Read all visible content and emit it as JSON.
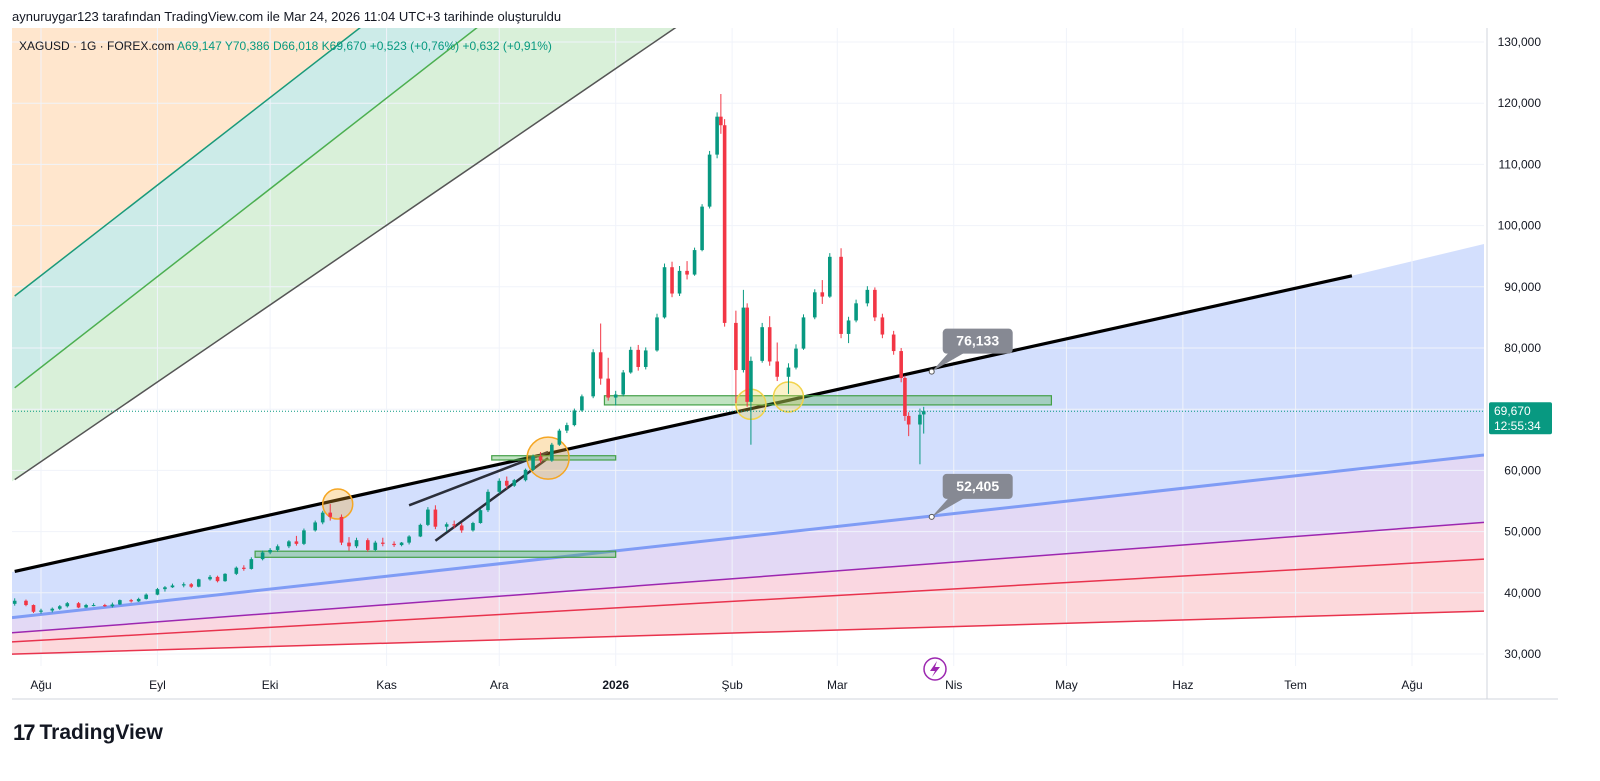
{
  "header": {
    "note": "aynuruygar123 tarafından TradingView.com ile Mar 24, 2026 11:04 UTC+3 tarihinde oluşturuldu"
  },
  "legend": {
    "symbol": "XAGUSD · 1G · FOREX.com",
    "open": "A69,147",
    "high": "Y70,386",
    "low": "D66,018",
    "close": "K69,670",
    "change": "+0,523 (+0,76%)",
    "change2": "+0,632 (+0,91%)"
  },
  "brand": {
    "logo_mark": "17",
    "name": "TradingView"
  },
  "colors": {
    "up": "#089981",
    "down": "#f23645",
    "blue_line": "#7f9cf5",
    "price_label": "#089981",
    "callout": "#868993"
  },
  "chart_data": {
    "type": "candlestick",
    "y_ticks": [
      "130,000",
      "120,000",
      "110,000",
      "100,000",
      "90,000",
      "80,000",
      "70,000",
      "60,000",
      "50,000",
      "40,000",
      "30,000"
    ],
    "y_tick_values": [
      130,
      120,
      110,
      100,
      90,
      80,
      70,
      60,
      50,
      40,
      30
    ],
    "ylim": [
      28,
      133
    ],
    "x_ticks": [
      "Ağu",
      "Eyl",
      "Eki",
      "Kas",
      "Ara",
      "2026",
      "Şub",
      "Mar",
      "Nis",
      "May",
      "Haz",
      "Tem",
      "Ağu"
    ],
    "x_tick_dates": [
      "2025-08-01",
      "2025-09-01",
      "2025-10-01",
      "2025-11-01",
      "2025-12-01",
      "2026-01-01",
      "2026-02-01",
      "2026-03-01",
      "2026-04-01",
      "2026-05-01",
      "2026-06-01",
      "2026-07-01",
      "2026-08-01"
    ],
    "last_price": "69,670",
    "countdown": "12:55:34",
    "callouts": [
      {
        "label": "76,133",
        "date": "2026-03-24",
        "value": 76.133
      },
      {
        "label": "52,405",
        "date": "2026-03-24",
        "value": 52.405
      }
    ],
    "trendlines": [
      {
        "name": "black-trendline",
        "from": [
          "2025-07-25",
          43.5
        ],
        "to": [
          "2026-07-16",
          91.8
        ]
      },
      {
        "name": "blue-trendline",
        "from": [
          "2025-07-25",
          36.0
        ],
        "to": [
          "2026-08-20",
          62.5
        ]
      },
      {
        "name": "purple-line",
        "from": [
          "2025-07-25",
          33.5
        ],
        "to": [
          "2026-08-20",
          51.5
        ]
      },
      {
        "name": "red-line",
        "from": [
          "2025-07-25",
          32.0
        ],
        "to": [
          "2026-08-20",
          45.5
        ]
      },
      {
        "name": "red-line-lower",
        "from": [
          "2025-07-25",
          30.0
        ],
        "to": [
          "2026-08-20",
          37.0
        ]
      },
      {
        "name": "gray-channel-line",
        "from": [
          "2025-07-25",
          58.5
        ],
        "to": [
          "2026-02-28",
          150.0
        ]
      },
      {
        "name": "green-channel-line",
        "from": [
          "2025-07-25",
          73.5
        ],
        "to": [
          "2026-01-01",
          150.0
        ]
      },
      {
        "name": "teal-channel-line",
        "from": [
          "2025-07-25",
          88.5
        ],
        "to": [
          "2025-12-01",
          150.0
        ]
      },
      {
        "name": "short-trendline",
        "from": [
          "2025-11-14",
          48.5
        ],
        "to": [
          "2025-12-14",
          62.0
        ]
      },
      {
        "name": "short-trendline-2",
        "from": [
          "2025-11-07",
          54.3
        ],
        "to": [
          "2025-12-14",
          63.0
        ]
      }
    ],
    "zones": [
      {
        "from": "2025-09-27",
        "to": "2026-01-01",
        "low": 45.8,
        "high": 46.8
      },
      {
        "from": "2025-11-29",
        "to": "2026-01-01",
        "low": 61.7,
        "high": 62.4
      },
      {
        "from": "2025-12-29",
        "to": "2026-04-27",
        "low": 70.7,
        "high": 72.2
      }
    ],
    "circles": [
      {
        "date": "2025-10-19",
        "value": 54.5,
        "color": "#f5a623"
      },
      {
        "date": "2025-12-14",
        "value": 62.0,
        "color": "#f5a623"
      },
      {
        "date": "2026-02-06",
        "value": 70.8,
        "color": "#f2d34c"
      },
      {
        "date": "2026-02-16",
        "value": 72.0,
        "color": "#f2d34c"
      }
    ],
    "candles": [
      [
        "2025-07-25",
        38.2,
        39.1,
        37.9,
        38.7
      ],
      [
        "2025-07-28",
        38.7,
        38.9,
        37.8,
        38.0
      ],
      [
        "2025-07-30",
        38.0,
        38.1,
        36.7,
        36.9
      ],
      [
        "2025-08-01",
        36.9,
        37.4,
        36.6,
        37.1
      ],
      [
        "2025-08-04",
        37.1,
        37.6,
        36.8,
        37.4
      ],
      [
        "2025-08-06",
        37.4,
        38.0,
        37.2,
        37.8
      ],
      [
        "2025-08-08",
        37.8,
        38.5,
        37.6,
        38.3
      ],
      [
        "2025-08-11",
        38.3,
        38.5,
        37.5,
        37.6
      ],
      [
        "2025-08-13",
        37.6,
        38.2,
        37.5,
        38.0
      ],
      [
        "2025-08-15",
        38.0,
        38.3,
        37.8,
        38.0
      ],
      [
        "2025-08-18",
        38.0,
        38.2,
        37.7,
        37.8
      ],
      [
        "2025-08-20",
        37.8,
        38.4,
        37.6,
        38.1
      ],
      [
        "2025-08-22",
        38.1,
        38.9,
        38.0,
        38.8
      ],
      [
        "2025-08-25",
        38.8,
        39.0,
        38.4,
        38.6
      ],
      [
        "2025-08-27",
        38.6,
        39.2,
        38.5,
        39.0
      ],
      [
        "2025-08-29",
        39.0,
        39.9,
        38.9,
        39.7
      ],
      [
        "2025-09-01",
        39.7,
        40.8,
        39.6,
        40.6
      ],
      [
        "2025-09-03",
        40.6,
        41.1,
        40.2,
        40.9
      ],
      [
        "2025-09-05",
        40.9,
        41.5,
        40.8,
        41.2
      ],
      [
        "2025-09-08",
        41.2,
        41.7,
        40.9,
        41.4
      ],
      [
        "2025-09-10",
        41.4,
        41.6,
        40.8,
        41.0
      ],
      [
        "2025-09-12",
        41.0,
        42.3,
        40.9,
        42.2
      ],
      [
        "2025-09-15",
        42.2,
        42.9,
        42.0,
        42.6
      ],
      [
        "2025-09-17",
        42.6,
        42.8,
        41.7,
        41.9
      ],
      [
        "2025-09-19",
        41.9,
        43.2,
        41.8,
        43.1
      ],
      [
        "2025-09-22",
        43.1,
        44.3,
        42.9,
        44.1
      ],
      [
        "2025-09-24",
        44.1,
        44.5,
        43.6,
        43.9
      ],
      [
        "2025-09-26",
        43.9,
        45.8,
        43.8,
        45.5
      ],
      [
        "2025-09-29",
        45.5,
        46.9,
        45.3,
        46.6
      ],
      [
        "2025-10-01",
        46.6,
        47.3,
        46.3,
        47.0
      ],
      [
        "2025-10-03",
        47.0,
        47.9,
        46.7,
        47.6
      ],
      [
        "2025-10-06",
        47.6,
        48.6,
        47.3,
        48.4
      ],
      [
        "2025-10-08",
        48.4,
        49.3,
        47.7,
        48.0
      ],
      [
        "2025-10-10",
        48.0,
        50.5,
        47.8,
        50.2
      ],
      [
        "2025-10-13",
        50.2,
        51.8,
        50.0,
        51.5
      ],
      [
        "2025-10-15",
        51.5,
        53.4,
        51.2,
        53.1
      ],
      [
        "2025-10-17",
        53.1,
        54.5,
        51.8,
        52.4
      ],
      [
        "2025-10-20",
        52.4,
        52.8,
        47.8,
        48.2
      ],
      [
        "2025-10-22",
        48.2,
        49.1,
        46.9,
        47.6
      ],
      [
        "2025-10-24",
        47.6,
        49.0,
        47.3,
        48.6
      ],
      [
        "2025-10-27",
        48.6,
        48.9,
        46.7,
        47.0
      ],
      [
        "2025-10-29",
        47.0,
        48.5,
        46.8,
        48.2
      ],
      [
        "2025-10-31",
        48.2,
        49.0,
        47.6,
        48.0
      ],
      [
        "2025-11-03",
        48.0,
        48.4,
        47.5,
        47.8
      ],
      [
        "2025-11-05",
        47.8,
        48.3,
        47.6,
        48.2
      ],
      [
        "2025-11-07",
        48.2,
        49.4,
        47.9,
        49.2
      ],
      [
        "2025-11-10",
        49.2,
        51.3,
        49.1,
        51.1
      ],
      [
        "2025-11-12",
        51.1,
        54.0,
        50.9,
        53.6
      ],
      [
        "2025-11-14",
        53.6,
        54.3,
        50.4,
        50.8
      ],
      [
        "2025-11-17",
        50.8,
        51.5,
        50.0,
        51.2
      ],
      [
        "2025-11-19",
        51.2,
        51.8,
        50.5,
        51.0
      ],
      [
        "2025-11-21",
        51.0,
        51.4,
        49.8,
        50.2
      ],
      [
        "2025-11-24",
        50.2,
        51.6,
        50.0,
        51.4
      ],
      [
        "2025-11-26",
        51.4,
        53.7,
        51.3,
        53.5
      ],
      [
        "2025-11-28",
        53.5,
        56.9,
        53.2,
        56.5
      ],
      [
        "2025-12-01",
        56.5,
        58.7,
        56.2,
        58.3
      ],
      [
        "2025-12-03",
        58.3,
        59.0,
        57.0,
        57.5
      ],
      [
        "2025-12-05",
        57.5,
        58.6,
        57.3,
        58.4
      ],
      [
        "2025-12-08",
        58.4,
        60.3,
        58.2,
        60.1
      ],
      [
        "2025-12-10",
        60.1,
        62.6,
        59.9,
        62.3
      ],
      [
        "2025-12-12",
        62.3,
        63.0,
        61.2,
        61.6
      ],
      [
        "2025-12-15",
        61.6,
        64.5,
        61.4,
        64.2
      ],
      [
        "2025-12-17",
        64.2,
        66.8,
        64.0,
        66.5
      ],
      [
        "2025-12-19",
        66.5,
        67.8,
        66.1,
        67.4
      ],
      [
        "2025-12-21",
        67.4,
        70.1,
        67.2,
        69.8
      ],
      [
        "2025-12-23",
        69.8,
        72.4,
        69.6,
        72.1
      ],
      [
        "2025-12-26",
        72.1,
        79.8,
        71.8,
        79.3
      ],
      [
        "2025-12-28",
        79.3,
        84.0,
        74.0,
        75.0
      ],
      [
        "2025-12-30",
        75.0,
        78.4,
        71.4,
        71.9
      ],
      [
        "2026-01-01",
        71.9,
        73.0,
        70.6,
        72.4
      ],
      [
        "2026-01-03",
        72.4,
        76.4,
        72.1,
        76.0
      ],
      [
        "2026-01-05",
        76.0,
        80.2,
        75.8,
        79.7
      ],
      [
        "2026-01-07",
        79.7,
        80.5,
        76.3,
        76.9
      ],
      [
        "2026-01-09",
        76.9,
        80.1,
        76.5,
        79.6
      ],
      [
        "2026-01-12",
        79.6,
        85.6,
        79.4,
        85.0
      ],
      [
        "2026-01-14",
        85.0,
        93.8,
        84.8,
        93.2
      ],
      [
        "2026-01-16",
        93.2,
        94.1,
        88.3,
        88.9
      ],
      [
        "2026-01-18",
        88.9,
        93.4,
        88.5,
        92.6
      ],
      [
        "2026-01-20",
        92.6,
        94.2,
        91.2,
        92.0
      ],
      [
        "2026-01-22",
        92.0,
        96.4,
        91.8,
        96.0
      ],
      [
        "2026-01-24",
        96.0,
        103.5,
        95.8,
        103.1
      ],
      [
        "2026-01-26",
        103.1,
        112.2,
        102.8,
        111.6
      ],
      [
        "2026-01-28",
        111.6,
        118.5,
        111.0,
        117.8
      ],
      [
        "2026-01-29",
        117.8,
        121.5,
        115.0,
        116.4
      ],
      [
        "2026-01-30",
        116.4,
        117.4,
        83.5,
        84.1
      ],
      [
        "2026-02-02",
        84.1,
        86.1,
        71.0,
        76.4
      ],
      [
        "2026-02-04",
        76.4,
        89.5,
        76.0,
        86.6
      ],
      [
        "2026-02-05",
        86.6,
        87.3,
        70.4,
        71.2
      ],
      [
        "2026-02-06",
        71.2,
        78.6,
        64.2,
        77.9
      ],
      [
        "2026-02-09",
        77.9,
        84.1,
        77.6,
        83.4
      ],
      [
        "2026-02-11",
        83.4,
        85.2,
        77.1,
        77.8
      ],
      [
        "2026-02-13",
        77.8,
        80.9,
        74.6,
        75.3
      ],
      [
        "2026-02-16",
        75.3,
        77.5,
        72.5,
        76.8
      ],
      [
        "2026-02-18",
        76.8,
        80.6,
        76.5,
        79.9
      ],
      [
        "2026-02-20",
        79.9,
        85.5,
        79.7,
        85.0
      ],
      [
        "2026-02-23",
        85.0,
        89.6,
        84.7,
        89.1
      ],
      [
        "2026-02-25",
        89.1,
        91.1,
        87.2,
        88.4
      ],
      [
        "2026-02-27",
        88.4,
        95.5,
        88.2,
        94.9
      ],
      [
        "2026-03-02",
        94.9,
        96.3,
        81.6,
        82.3
      ],
      [
        "2026-03-04",
        82.3,
        85.1,
        80.8,
        84.5
      ],
      [
        "2026-03-06",
        84.5,
        87.9,
        84.2,
        87.3
      ],
      [
        "2026-03-09",
        87.3,
        90.1,
        86.8,
        89.5
      ],
      [
        "2026-03-11",
        89.5,
        89.9,
        84.4,
        85.0
      ],
      [
        "2026-03-13",
        85.0,
        85.6,
        81.6,
        82.2
      ],
      [
        "2026-03-16",
        82.2,
        82.8,
        78.9,
        79.5
      ],
      [
        "2026-03-18",
        79.5,
        80.0,
        74.4,
        75.1
      ],
      [
        "2026-03-19",
        75.1,
        75.5,
        68.1,
        68.9
      ],
      [
        "2026-03-20",
        68.9,
        69.5,
        65.6,
        67.5
      ],
      [
        "2026-03-23",
        67.5,
        70.1,
        61.0,
        69.1
      ],
      [
        "2026-03-24",
        69.147,
        70.386,
        66.018,
        69.67
      ]
    ]
  }
}
